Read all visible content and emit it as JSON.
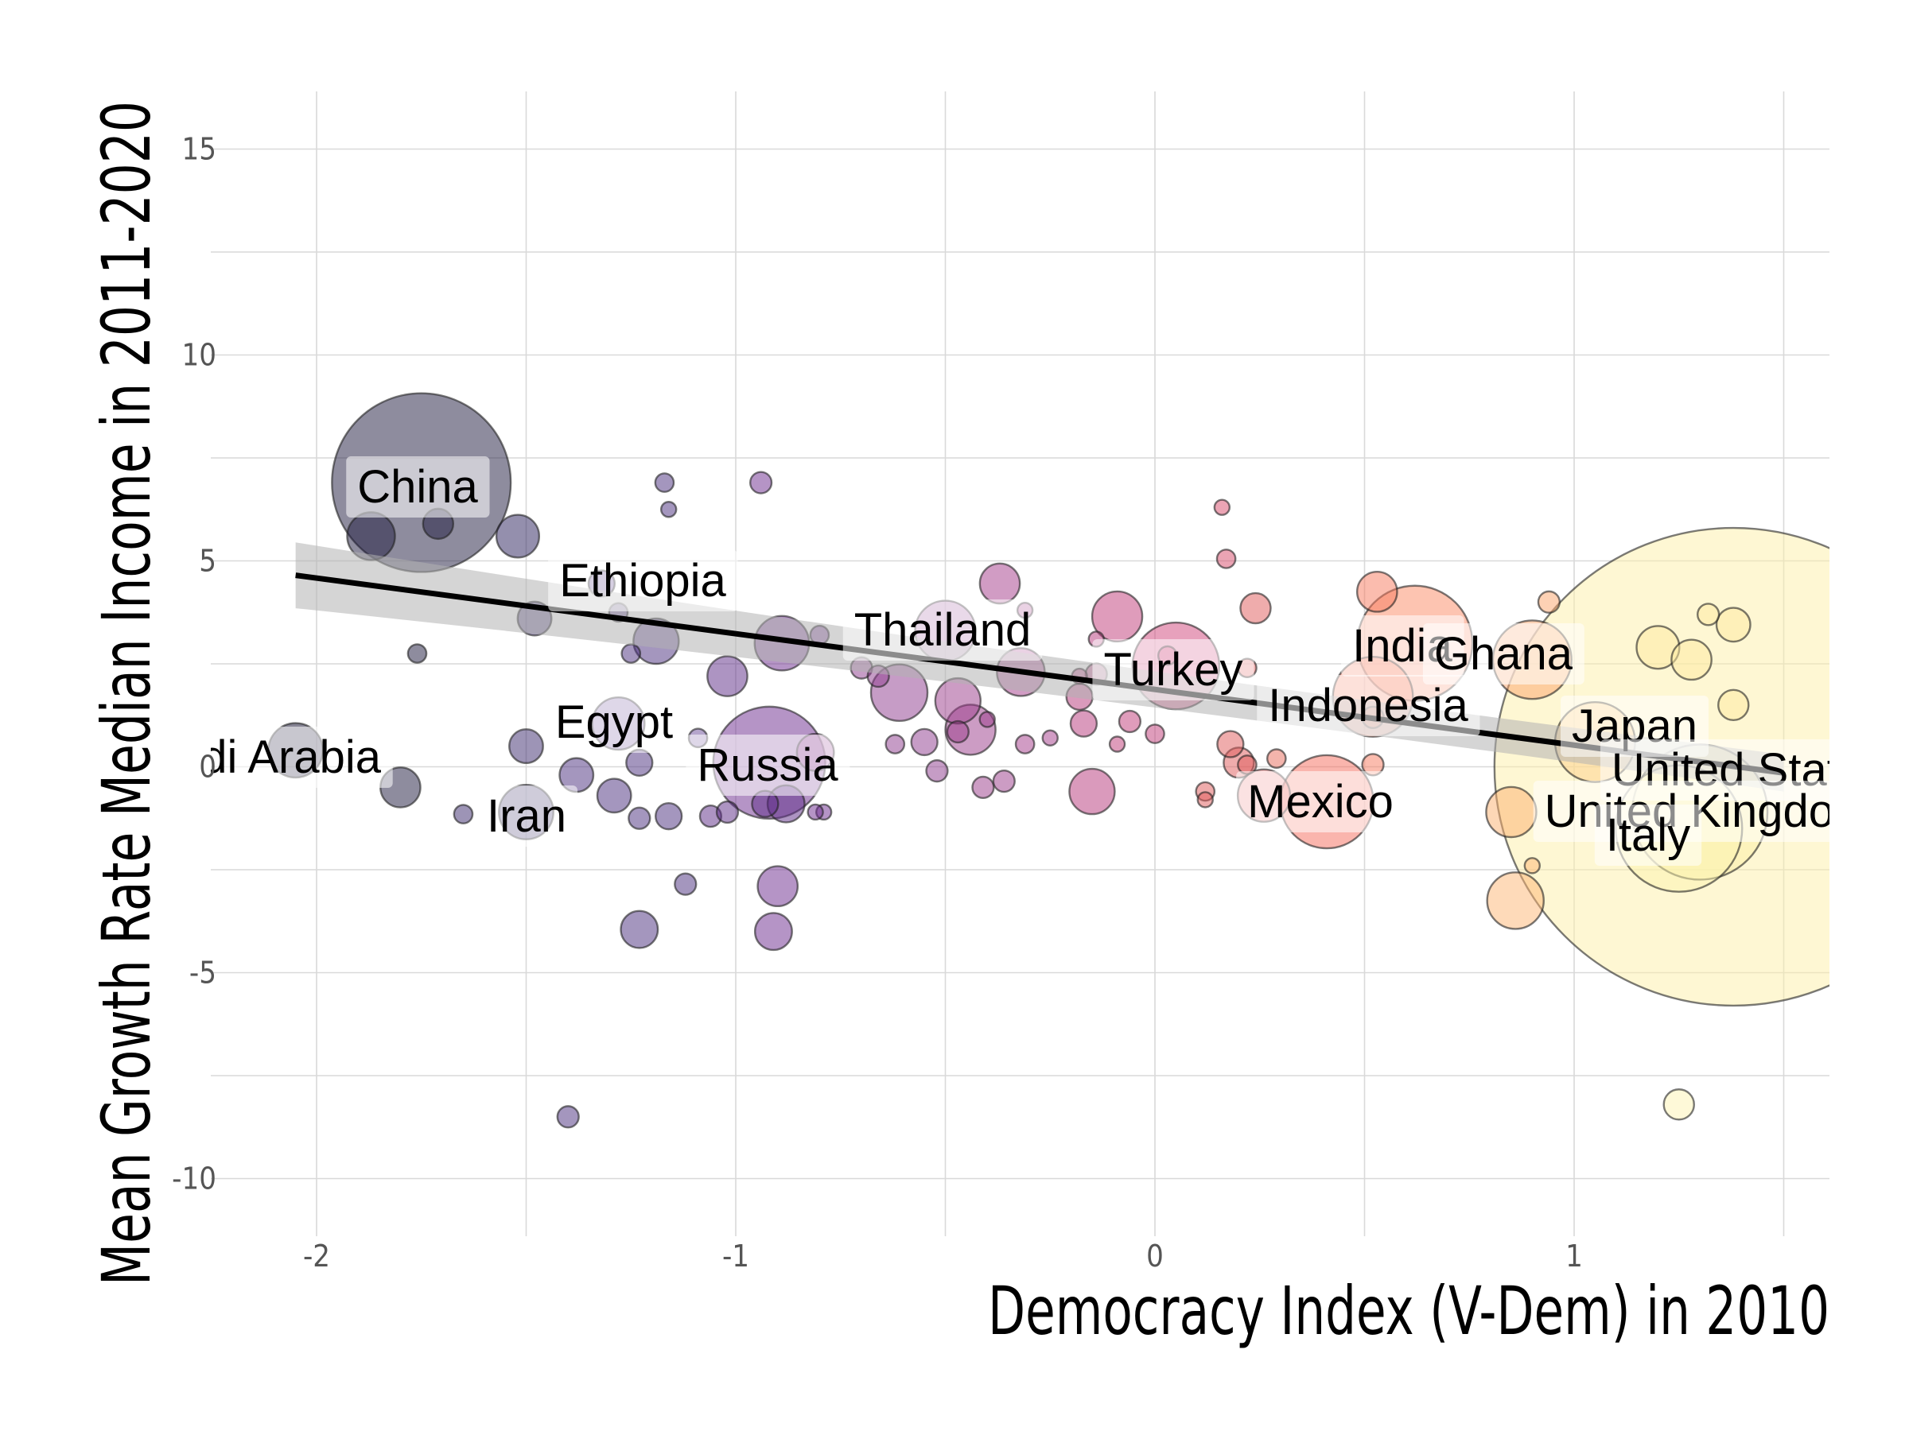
{
  "chart_data": {
    "type": "scatter",
    "xlabel": "Democracy Index (V-Dem) in 2010",
    "ylabel": "Mean Growth Rate Median Income in 2011-2020",
    "xlim": [
      -2.4,
      1.6
    ],
    "ylim": [
      -11,
      16
    ],
    "x_ticks": [
      -2,
      -1,
      0,
      1
    ],
    "x_tick_labels": [
      "-2",
      "-1",
      "0",
      "1"
    ],
    "y_ticks": [
      -10,
      -5,
      0,
      5,
      10,
      15
    ],
    "y_tick_labels": [
      "-10",
      "-5",
      "0",
      "5",
      "10",
      "15"
    ],
    "grid": true,
    "trend_line": {
      "x": [
        -2.05,
        1.5
      ],
      "y": [
        4.65,
        -0.15
      ]
    },
    "colors": {
      "low": "#0d0a29",
      "mid_low": "#5b2a86",
      "mid": "#b5367a",
      "mid_high": "#f66c5c",
      "high": "#fcfdbf"
    },
    "points": [
      {
        "label": "China",
        "x": -1.75,
        "y": 6.9,
        "size": 140,
        "color": "#1d1a3d"
      },
      {
        "label": "",
        "x": -1.87,
        "y": 5.6,
        "size": 10,
        "color": "#1d1a3d"
      },
      {
        "label": "",
        "x": -1.71,
        "y": 5.9,
        "size": 4,
        "color": "#1d1a3d"
      },
      {
        "label": "",
        "x": -1.52,
        "y": 5.6,
        "size": 8,
        "color": "#2a1f5c"
      },
      {
        "label": "",
        "x": -1.76,
        "y": 2.75,
        "size": 1.5,
        "color": "#1d1a3d"
      },
      {
        "label": "udi Arabia",
        "x": -2.05,
        "y": 0.4,
        "size": 13,
        "color": "#0d0a29"
      },
      {
        "label": "",
        "x": -1.8,
        "y": -0.5,
        "size": 7,
        "color": "#1d1a3d"
      },
      {
        "label": "Iran",
        "x": -1.5,
        "y": -1.1,
        "size": 13,
        "color": "#2a1f5c"
      },
      {
        "label": "",
        "x": -1.65,
        "y": -1.15,
        "size": 1.5,
        "color": "#3b2a6e"
      },
      {
        "label": "",
        "x": -1.5,
        "y": 0.5,
        "size": 5,
        "color": "#3b2a6e"
      },
      {
        "label": "",
        "x": -1.48,
        "y": 3.6,
        "size": 5,
        "color": "#3b2a6e"
      },
      {
        "label": "Ethiopia",
        "x": -1.32,
        "y": 4.45,
        "size": 3,
        "color": "#4a2d7d"
      },
      {
        "label": "",
        "x": -1.28,
        "y": 3.75,
        "size": 1.5,
        "color": "#4a2d7d"
      },
      {
        "label": "",
        "x": -1.19,
        "y": 3.05,
        "size": 9,
        "color": "#4a2d7d"
      },
      {
        "label": "",
        "x": -1.25,
        "y": 2.75,
        "size": 1.5,
        "color": "#4a2d7d"
      },
      {
        "label": "",
        "x": -1.17,
        "y": 6.9,
        "size": 1.5,
        "color": "#4a2d7d"
      },
      {
        "label": "",
        "x": -1.16,
        "y": 6.25,
        "size": 1,
        "color": "#4a2d7d"
      },
      {
        "label": "Egypt",
        "x": -1.28,
        "y": 1.05,
        "size": 12,
        "color": "#6b4d9a"
      },
      {
        "label": "",
        "x": -1.23,
        "y": 0.1,
        "size": 3,
        "color": "#4a2d7d"
      },
      {
        "label": "",
        "x": -1.38,
        "y": -0.2,
        "size": 5,
        "color": "#4a2d7d"
      },
      {
        "label": "",
        "x": -1.29,
        "y": -0.7,
        "size": 5,
        "color": "#4a2d7d"
      },
      {
        "label": "",
        "x": -1.23,
        "y": -1.25,
        "size": 2,
        "color": "#4a2d7d"
      },
      {
        "label": "",
        "x": -1.16,
        "y": -1.2,
        "size": 3,
        "color": "#4a2d7d"
      },
      {
        "label": "",
        "x": -1.12,
        "y": -2.85,
        "size": 2,
        "color": "#4a2d7d"
      },
      {
        "label": "",
        "x": -1.23,
        "y": -3.95,
        "size": 6,
        "color": "#4a2d7d"
      },
      {
        "label": "",
        "x": -1.4,
        "y": -8.5,
        "size": 2,
        "color": "#4a2d7d"
      },
      {
        "label": "",
        "x": -1.09,
        "y": 0.7,
        "size": 1.5,
        "color": "#6b4d9a"
      },
      {
        "label": "",
        "x": -1.06,
        "y": -1.2,
        "size": 2,
        "color": "#5b2a86"
      },
      {
        "label": "",
        "x": -1.02,
        "y": 2.2,
        "size": 7,
        "color": "#5b2a86"
      },
      {
        "label": "",
        "x": -1.02,
        "y": -1.1,
        "size": 2,
        "color": "#5b2a86"
      },
      {
        "label": "Russia",
        "x": -0.92,
        "y": 0.1,
        "size": 55,
        "color": "#6b2a8e"
      },
      {
        "label": "",
        "x": -0.93,
        "y": -0.9,
        "size": 3,
        "color": "#5b2a86"
      },
      {
        "label": "",
        "x": -0.88,
        "y": -0.9,
        "size": 6,
        "color": "#5b2a86"
      },
      {
        "label": "",
        "x": -0.94,
        "y": 6.9,
        "size": 2,
        "color": "#6b2a8e"
      },
      {
        "label": "",
        "x": -0.89,
        "y": 3.0,
        "size": 13,
        "color": "#6b2a8e"
      },
      {
        "label": "",
        "x": -0.8,
        "y": 3.2,
        "size": 1.5,
        "color": "#6b2a8e"
      },
      {
        "label": "",
        "x": -0.9,
        "y": -2.9,
        "size": 7,
        "color": "#6b2a8e"
      },
      {
        "label": "",
        "x": -0.91,
        "y": -4.0,
        "size": 6,
        "color": "#6b2a8e"
      },
      {
        "label": "",
        "x": -0.79,
        "y": -1.1,
        "size": 1,
        "color": "#6b2a8e"
      },
      {
        "label": "",
        "x": -0.81,
        "y": -1.1,
        "size": 1,
        "color": "#6b2a8e"
      },
      {
        "label": "",
        "x": -0.81,
        "y": 0.35,
        "size": 6,
        "color": "#9b4c9a"
      },
      {
        "label": "",
        "x": -0.7,
        "y": 2.4,
        "size": 2,
        "color": "#8e3a8e"
      },
      {
        "label": "",
        "x": -0.66,
        "y": 2.2,
        "size": 2,
        "color": "#8e3a8e"
      },
      {
        "label": "",
        "x": -0.62,
        "y": 0.55,
        "size": 1.5,
        "color": "#8e3a8e"
      },
      {
        "label": "",
        "x": -0.61,
        "y": 1.8,
        "size": 14,
        "color": "#8e3a8e"
      },
      {
        "label": "",
        "x": -0.55,
        "y": 0.6,
        "size": 3,
        "color": "#8e3a8e"
      },
      {
        "label": "",
        "x": -0.52,
        "y": -0.1,
        "size": 2,
        "color": "#8e3a8e"
      },
      {
        "label": "Thailand",
        "x": -0.5,
        "y": 3.3,
        "size": 16,
        "color": "#a05aa0"
      },
      {
        "label": "",
        "x": -0.47,
        "y": 1.6,
        "size": 9,
        "color": "#9a3a8a"
      },
      {
        "label": "",
        "x": -0.44,
        "y": 0.9,
        "size": 11,
        "color": "#9a3a8a"
      },
      {
        "label": "",
        "x": -0.47,
        "y": 0.85,
        "size": 2,
        "color": "#9a3a8a"
      },
      {
        "label": "",
        "x": -0.4,
        "y": 1.15,
        "size": 1,
        "color": "#9a3a8a"
      },
      {
        "label": "",
        "x": -0.41,
        "y": -0.5,
        "size": 2,
        "color": "#9a3a8a"
      },
      {
        "label": "",
        "x": -0.36,
        "y": -0.35,
        "size": 2,
        "color": "#9a3a8a"
      },
      {
        "label": "",
        "x": -0.37,
        "y": 4.45,
        "size": 7,
        "color": "#a33a8a"
      },
      {
        "label": "",
        "x": -0.31,
        "y": 3.8,
        "size": 1,
        "color": "#a33a8a"
      },
      {
        "label": "",
        "x": -0.32,
        "y": 2.3,
        "size": 10,
        "color": "#a33a8a"
      },
      {
        "label": "",
        "x": -0.31,
        "y": 0.55,
        "size": 1.5,
        "color": "#a33a8a"
      },
      {
        "label": "",
        "x": -0.25,
        "y": 0.7,
        "size": 1,
        "color": "#a33a8a"
      },
      {
        "label": "",
        "x": -0.18,
        "y": 2.2,
        "size": 1,
        "color": "#b5367a"
      },
      {
        "label": "",
        "x": -0.18,
        "y": 1.7,
        "size": 3,
        "color": "#b5367a"
      },
      {
        "label": "",
        "x": -0.17,
        "y": 1.05,
        "size": 3,
        "color": "#b5367a"
      },
      {
        "label": "",
        "x": -0.14,
        "y": 3.1,
        "size": 1,
        "color": "#b5367a"
      },
      {
        "label": "",
        "x": -0.14,
        "y": 2.25,
        "size": 2,
        "color": "#b5367a"
      },
      {
        "label": "",
        "x": -0.15,
        "y": -0.6,
        "size": 9,
        "color": "#b5367a"
      },
      {
        "label": "",
        "x": -0.09,
        "y": 3.65,
        "size": 11,
        "color": "#c03a78"
      },
      {
        "label": "",
        "x": -0.09,
        "y": 0.55,
        "size": 1,
        "color": "#c03a78"
      },
      {
        "label": "",
        "x": -0.06,
        "y": 1.1,
        "size": 2,
        "color": "#c03a78"
      },
      {
        "label": "",
        "x": 0.0,
        "y": 0.8,
        "size": 1.5,
        "color": "#c03a78"
      },
      {
        "label": "Turkey",
        "x": 0.05,
        "y": 2.45,
        "size": 33,
        "color": "#d0447a"
      },
      {
        "label": "",
        "x": 0.03,
        "y": 2.7,
        "size": 1.5,
        "color": "#d0447a"
      },
      {
        "label": "",
        "x": 0.16,
        "y": 6.3,
        "size": 1,
        "color": "#d84a6a"
      },
      {
        "label": "",
        "x": 0.17,
        "y": 5.05,
        "size": 1.5,
        "color": "#d84a6a"
      },
      {
        "label": "",
        "x": 0.24,
        "y": 3.85,
        "size": 4,
        "color": "#e05a5a"
      },
      {
        "label": "",
        "x": 0.22,
        "y": 2.4,
        "size": 1.5,
        "color": "#e05a5a"
      },
      {
        "label": "",
        "x": 0.18,
        "y": 0.55,
        "size": 3,
        "color": "#e05a5a"
      },
      {
        "label": "",
        "x": 0.2,
        "y": 0.1,
        "size": 4,
        "color": "#e05a5a"
      },
      {
        "label": "",
        "x": 0.22,
        "y": 0.05,
        "size": 1.5,
        "color": "#e05a5a"
      },
      {
        "label": "",
        "x": 0.12,
        "y": -0.6,
        "size": 1.5,
        "color": "#e05a5a"
      },
      {
        "label": "",
        "x": 0.12,
        "y": -0.8,
        "size": 1,
        "color": "#e05a5a"
      },
      {
        "label": "",
        "x": 0.29,
        "y": 0.2,
        "size": 1.5,
        "color": "#e86a5a"
      },
      {
        "label": "",
        "x": 0.26,
        "y": -0.7,
        "size": 12,
        "color": "#f08080"
      },
      {
        "label": "Mexico",
        "x": 0.41,
        "y": -0.85,
        "size": 38,
        "color": "#f66c5c"
      },
      {
        "label": "Indonesia",
        "x": 0.52,
        "y": 1.7,
        "size": 28,
        "color": "#f77a5e"
      },
      {
        "label": "",
        "x": 0.52,
        "y": 1.2,
        "size": 2,
        "color": "#f77a5e"
      },
      {
        "label": "",
        "x": 0.53,
        "y": 4.25,
        "size": 7,
        "color": "#f77a5e"
      },
      {
        "label": "",
        "x": 0.52,
        "y": 0.05,
        "size": 2,
        "color": "#f77a5e"
      },
      {
        "label": "India",
        "x": 0.62,
        "y": 3.0,
        "size": 58,
        "color": "#fb8a64"
      },
      {
        "label": "Ghana",
        "x": 0.9,
        "y": 2.6,
        "size": 27,
        "color": "#fca36a"
      },
      {
        "label": "",
        "x": 0.94,
        "y": 4.0,
        "size": 2,
        "color": "#fca36a"
      },
      {
        "label": "",
        "x": 0.85,
        "y": -1.1,
        "size": 11,
        "color": "#fcb06e"
      },
      {
        "label": "",
        "x": 0.86,
        "y": -3.25,
        "size": 14,
        "color": "#fdb574"
      },
      {
        "label": "",
        "x": 0.9,
        "y": -2.4,
        "size": 1,
        "color": "#fdb574"
      },
      {
        "label": "Japan",
        "x": 1.05,
        "y": 0.6,
        "size": 28,
        "color": "#fdd08a"
      },
      {
        "label": "United States",
        "x": 1.38,
        "y": 0.0,
        "size": 1000,
        "color": "#fdf0a8"
      },
      {
        "label": "United Kingdom",
        "x": 1.3,
        "y": -1.1,
        "size": 80,
        "color": "#fcefa6"
      },
      {
        "label": "Italy",
        "x": 1.25,
        "y": -1.5,
        "size": 70,
        "color": "#fcf3b0"
      },
      {
        "label": "",
        "x": 1.2,
        "y": 2.9,
        "size": 8,
        "color": "#fde9a0"
      },
      {
        "label": "",
        "x": 1.28,
        "y": 2.6,
        "size": 7,
        "color": "#fde9a0"
      },
      {
        "label": "",
        "x": 1.32,
        "y": 3.7,
        "size": 2,
        "color": "#fde9a0"
      },
      {
        "label": "",
        "x": 1.38,
        "y": 3.45,
        "size": 5,
        "color": "#fde9a0"
      },
      {
        "label": "",
        "x": 1.38,
        "y": 1.5,
        "size": 4,
        "color": "#fde9a0"
      },
      {
        "label": "",
        "x": 1.25,
        "y": -8.2,
        "size": 4,
        "color": "#fdf3b2"
      }
    ],
    "size_scale": 2.6
  }
}
